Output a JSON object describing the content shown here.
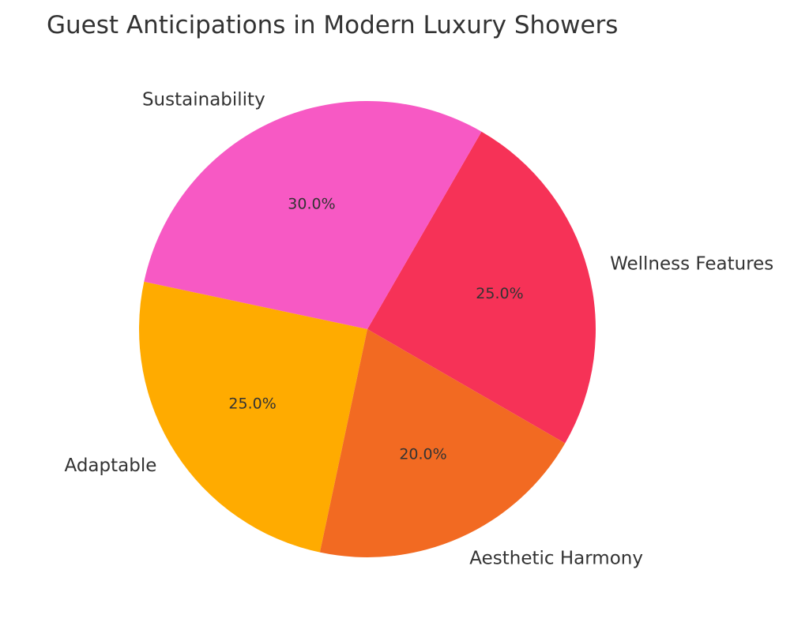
{
  "chart_data": {
    "type": "pie",
    "title": "Guest Anticipations in Modern Luxury Showers",
    "slices": [
      {
        "label": "Wellness Features",
        "value": 25.0,
        "pct_label": "25.0%",
        "color": "#F63257"
      },
      {
        "label": "Sustainability",
        "value": 30.0,
        "pct_label": "30.0%",
        "color": "#F759C4"
      },
      {
        "label": "Adaptable",
        "value": 25.0,
        "pct_label": "25.0%",
        "color": "#FFAB00"
      },
      {
        "label": "Aesthetic Harmony",
        "value": 20.0,
        "pct_label": "20.0%",
        "color": "#F26A22"
      }
    ],
    "start_angle_deg": -30,
    "direction": "counterclockwise",
    "legend": "none"
  }
}
